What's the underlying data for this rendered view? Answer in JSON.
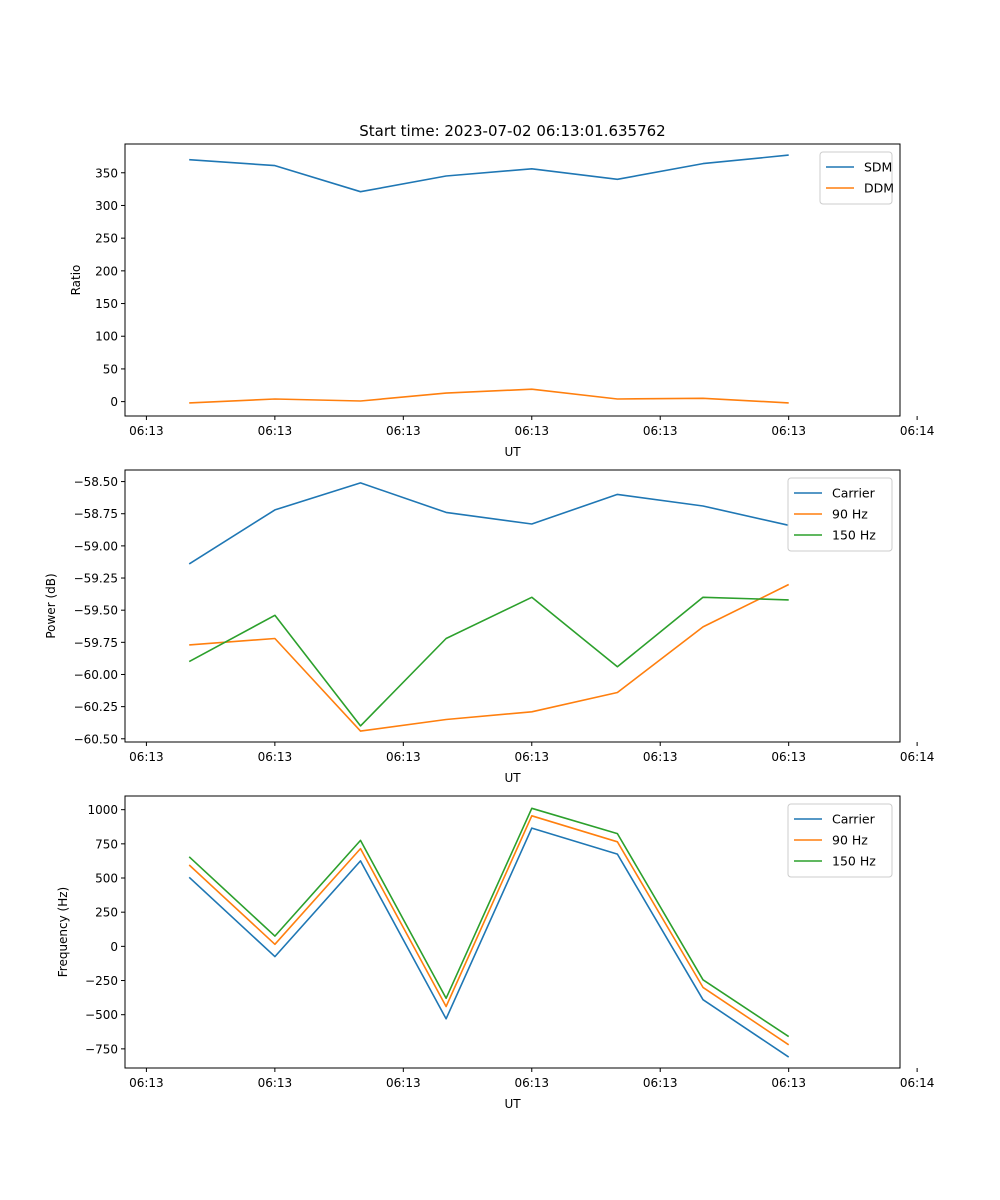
{
  "chart_data": [
    {
      "type": "line",
      "title": "Start time: 2023-07-02 06:13:01.635762",
      "xlabel": "UT",
      "ylabel": "Ratio",
      "x": [
        1,
        2,
        3,
        4,
        5,
        6,
        7,
        8
      ],
      "xlim": [
        0.25,
        9.3
      ],
      "xticks": [
        0.5,
        2.0,
        3.5,
        5.0,
        6.5,
        8.0,
        9.5
      ],
      "xtick_labels": [
        "06:13",
        "06:13",
        "06:13",
        "06:13",
        "06:13",
        "06:13",
        "06:14"
      ],
      "ylim": [
        -22,
        394
      ],
      "yticks": [
        0,
        50,
        100,
        150,
        200,
        250,
        300,
        350
      ],
      "ytick_labels": [
        "0",
        "50",
        "100",
        "150",
        "200",
        "250",
        "300",
        "350"
      ],
      "legend_position": "top-right",
      "series": [
        {
          "name": "SDM",
          "color": "#1f77b4",
          "values": [
            370,
            361,
            321,
            345,
            356,
            340,
            364,
            377
          ]
        },
        {
          "name": "DDM",
          "color": "#ff7f0e",
          "values": [
            -2,
            4,
            1,
            13,
            19,
            4,
            5,
            -2
          ]
        }
      ]
    },
    {
      "type": "line",
      "title": "",
      "xlabel": "UT",
      "ylabel": "Power (dB)",
      "x": [
        1,
        2,
        3,
        4,
        5,
        6,
        7,
        8
      ],
      "xlim": [
        0.25,
        9.3
      ],
      "xticks": [
        0.5,
        2.0,
        3.5,
        5.0,
        6.5,
        8.0,
        9.5
      ],
      "xtick_labels": [
        "06:13",
        "06:13",
        "06:13",
        "06:13",
        "06:13",
        "06:13",
        "06:14"
      ],
      "ylim": [
        -60.525,
        -58.41
      ],
      "yticks": [
        -60.5,
        -60.25,
        -60.0,
        -59.75,
        -59.5,
        -59.25,
        -59.0,
        -58.75,
        -58.5
      ],
      "ytick_labels": [
        "−60.50",
        "−60.25",
        "−60.00",
        "−59.75",
        "−59.50",
        "−59.25",
        "−59.00",
        "−58.75",
        "−58.50"
      ],
      "legend_position": "top-right",
      "series": [
        {
          "name": "Carrier",
          "color": "#1f77b4",
          "values": [
            -59.14,
            -58.72,
            -58.51,
            -58.74,
            -58.83,
            -58.6,
            -58.69,
            -58.84
          ]
        },
        {
          "name": "90 Hz",
          "color": "#ff7f0e",
          "values": [
            -59.77,
            -59.72,
            -60.44,
            -60.35,
            -60.29,
            -60.14,
            -59.63,
            -59.3
          ]
        },
        {
          "name": "150 Hz",
          "color": "#2ca02c",
          "values": [
            -59.9,
            -59.54,
            -60.4,
            -59.72,
            -59.4,
            -59.94,
            -59.4,
            -59.42
          ]
        }
      ]
    },
    {
      "type": "line",
      "title": "",
      "xlabel": "UT",
      "ylabel": "Frequency (Hz)",
      "x": [
        1,
        2,
        3,
        4,
        5,
        6,
        7,
        8
      ],
      "xlim": [
        0.25,
        9.3
      ],
      "xticks": [
        0.5,
        2.0,
        3.5,
        5.0,
        6.5,
        8.0,
        9.5
      ],
      "xtick_labels": [
        "06:13",
        "06:13",
        "06:13",
        "06:13",
        "06:13",
        "06:13",
        "06:14"
      ],
      "ylim": [
        -890,
        1100
      ],
      "yticks": [
        -750,
        -500,
        -250,
        0,
        250,
        500,
        750,
        1000
      ],
      "ytick_labels": [
        "−750",
        "−500",
        "−250",
        "0",
        "250",
        "500",
        "750",
        "1000"
      ],
      "legend_position": "top-right",
      "series": [
        {
          "name": "Carrier",
          "color": "#1f77b4",
          "values": [
            505,
            -75,
            625,
            -530,
            865,
            675,
            -390,
            -810
          ]
        },
        {
          "name": "90 Hz",
          "color": "#ff7f0e",
          "values": [
            595,
            15,
            715,
            -440,
            955,
            765,
            -300,
            -720
          ]
        },
        {
          "name": "150 Hz",
          "color": "#2ca02c",
          "values": [
            655,
            75,
            775,
            -380,
            1010,
            825,
            -245,
            -660
          ]
        }
      ]
    }
  ]
}
